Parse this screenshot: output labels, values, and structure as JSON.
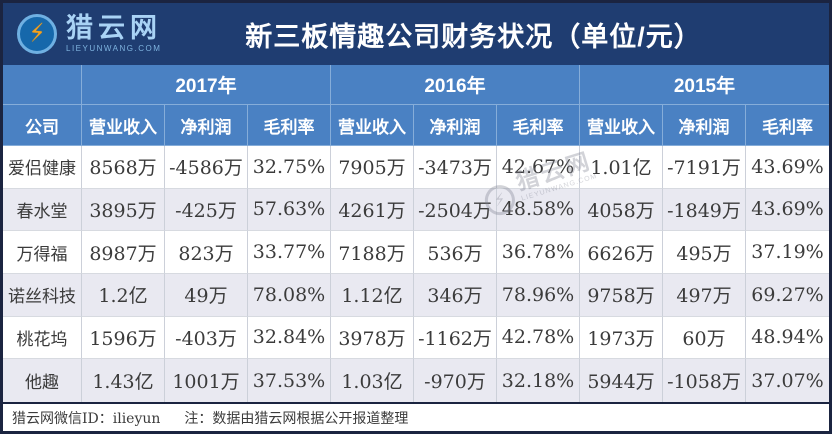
{
  "brand": {
    "name": "猎云网",
    "domain": "LIEYUNWANG.COM",
    "bolt_icon": "⚡"
  },
  "title": "新三板情趣公司财务状况（单位/元）",
  "table": {
    "company_header": "公司",
    "year_groups": [
      {
        "year": "2017年",
        "columns": [
          "营业收入",
          "净利润",
          "毛利率"
        ]
      },
      {
        "year": "2016年",
        "columns": [
          "营业收入",
          "净利润",
          "毛利率"
        ]
      },
      {
        "year": "2015年",
        "columns": [
          "营业收入",
          "净利润",
          "毛利率"
        ]
      }
    ],
    "rows": [
      {
        "company": "爱侣健康",
        "values": [
          "8568万",
          "-4586万",
          "32.75%",
          "7905万",
          "-3473万",
          "42.67%",
          "1.01亿",
          "-7191万",
          "43.69%"
        ]
      },
      {
        "company": "春水堂",
        "values": [
          "3895万",
          "-425万",
          "57.63%",
          "4261万",
          "-2504万",
          "48.58%",
          "4058万",
          "-1849万",
          "43.69%"
        ]
      },
      {
        "company": "万得福",
        "values": [
          "8987万",
          "823万",
          "33.77%",
          "7188万",
          "536万",
          "36.78%",
          "6626万",
          "495万",
          "37.19%"
        ]
      },
      {
        "company": "诺丝科技",
        "values": [
          "1.2亿",
          "49万",
          "78.08%",
          "1.12亿",
          "346万",
          "78.96%",
          "9758万",
          "497万",
          "69.27%"
        ]
      },
      {
        "company": "桃花坞",
        "values": [
          "1596万",
          "-403万",
          "32.84%",
          "3978万",
          "-1162万",
          "42.78%",
          "1973万",
          "60万",
          "48.94%"
        ]
      },
      {
        "company": "他趣",
        "values": [
          "1.43亿",
          "1001万",
          "37.53%",
          "1.03亿",
          "-970万",
          "32.18%",
          "5944万",
          "-1058万",
          "37.07%"
        ]
      }
    ]
  },
  "watermark": {
    "name": "猎云网",
    "domain": "LIEYUNWANG.COM",
    "logo_icon": "⚡"
  },
  "footer": {
    "wechat": "猎云网微信ID：ilieyun",
    "note": "注：数据由猎云网根据公开报道整理"
  },
  "colors": {
    "banner_bg": "#1f3d71",
    "header_bg": "#4a81c3",
    "row_alt_bg": "#e9e9f1",
    "outer_border": "#1b2440",
    "logo_bolt": "#f6a21d",
    "brand_text": "#a9d3f5"
  }
}
